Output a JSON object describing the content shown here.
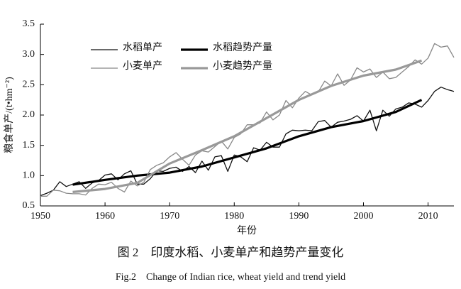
{
  "chart_data": {
    "type": "line",
    "title": "图 2　印度水稻、小麦单产和趋势产量变化",
    "subtitle": "Fig.2　Change of Indian rice, wheat yield and trend yield",
    "x_label": "年份",
    "y_label": "粮食单产/(t•hm⁻²)",
    "xlim": [
      1950,
      2014
    ],
    "ylim": [
      0.5,
      3.5
    ],
    "xticks": [
      1950,
      1960,
      1970,
      1980,
      1990,
      2000,
      2010
    ],
    "yticks": [
      {
        "value": 0.5,
        "label": "0.5"
      },
      {
        "value": 1,
        "label": "1.0"
      },
      {
        "value": 1.5,
        "label": "1.5"
      },
      {
        "value": 2,
        "label": "2.0"
      },
      {
        "value": 2.5,
        "label": "2.5"
      },
      {
        "value": 3,
        "label": "3.0"
      },
      {
        "value": 3.5,
        "label": "3.5"
      }
    ],
    "series": [
      {
        "name": "水稻单产",
        "color": "#111111",
        "width": 1.3,
        "x": [
          1950,
          1951,
          1952,
          1953,
          1954,
          1955,
          1956,
          1957,
          1958,
          1959,
          1960,
          1961,
          1962,
          1963,
          1964,
          1965,
          1966,
          1967,
          1968,
          1969,
          1970,
          1971,
          1972,
          1973,
          1974,
          1975,
          1976,
          1977,
          1978,
          1979,
          1980,
          1981,
          1982,
          1983,
          1984,
          1985,
          1986,
          1987,
          1988,
          1989,
          1990,
          1991,
          1992,
          1993,
          1994,
          1995,
          1996,
          1997,
          1998,
          1999,
          2000,
          2001,
          2002,
          2003,
          2004,
          2005,
          2006,
          2007,
          2008,
          2009,
          2010,
          2011,
          2012,
          2013,
          2014
        ],
        "values": [
          0.67,
          0.71,
          0.76,
          0.9,
          0.82,
          0.86,
          0.9,
          0.79,
          0.88,
          0.92,
          1.01,
          1.03,
          0.93,
          1.03,
          1.08,
          0.86,
          0.86,
          0.95,
          1.08,
          1.07,
          1.12,
          1.14,
          1.07,
          1.15,
          1.05,
          1.24,
          1.09,
          1.31,
          1.33,
          1.07,
          1.34,
          1.31,
          1.23,
          1.46,
          1.42,
          1.55,
          1.47,
          1.47,
          1.69,
          1.75,
          1.74,
          1.75,
          1.74,
          1.89,
          1.91,
          1.8,
          1.88,
          1.9,
          1.93,
          1.99,
          1.9,
          2.08,
          1.74,
          2.08,
          1.98,
          2.1,
          2.13,
          2.2,
          2.18,
          2.13,
          2.24,
          2.39,
          2.46,
          2.42,
          2.39
        ]
      },
      {
        "name": "水稻趋势产量",
        "color": "#000000",
        "width": 3.2,
        "x": [
          1955,
          1960,
          1965,
          1970,
          1975,
          1980,
          1985,
          1990,
          1995,
          2000,
          2005,
          2009
        ],
        "values": [
          0.85,
          0.93,
          1.0,
          1.05,
          1.15,
          1.3,
          1.45,
          1.65,
          1.8,
          1.9,
          2.05,
          2.25
        ]
      },
      {
        "name": "小麦单产",
        "color": "#888888",
        "width": 1.3,
        "x": [
          1950,
          1951,
          1952,
          1953,
          1954,
          1955,
          1956,
          1957,
          1958,
          1959,
          1960,
          1961,
          1962,
          1963,
          1964,
          1965,
          1966,
          1967,
          1968,
          1969,
          1970,
          1971,
          1972,
          1973,
          1974,
          1975,
          1976,
          1977,
          1978,
          1979,
          1980,
          1981,
          1982,
          1983,
          1984,
          1985,
          1986,
          1987,
          1988,
          1989,
          1990,
          1991,
          1992,
          1993,
          1994,
          1995,
          1996,
          1997,
          1998,
          1999,
          2000,
          2001,
          2002,
          2003,
          2004,
          2005,
          2006,
          2007,
          2008,
          2009,
          2010,
          2011,
          2012,
          2013,
          2014
        ],
        "values": [
          0.66,
          0.66,
          0.76,
          0.75,
          0.71,
          0.7,
          0.7,
          0.68,
          0.79,
          0.86,
          0.85,
          0.89,
          0.79,
          0.73,
          0.91,
          0.83,
          0.89,
          1.1,
          1.17,
          1.21,
          1.31,
          1.38,
          1.27,
          1.17,
          1.34,
          1.41,
          1.39,
          1.48,
          1.57,
          1.44,
          1.63,
          1.69,
          1.84,
          1.84,
          1.87,
          2.05,
          1.92,
          2.0,
          2.24,
          2.12,
          2.28,
          2.39,
          2.33,
          2.38,
          2.56,
          2.48,
          2.68,
          2.49,
          2.58,
          2.78,
          2.71,
          2.76,
          2.62,
          2.71,
          2.6,
          2.62,
          2.71,
          2.8,
          2.91,
          2.84,
          2.94,
          3.18,
          3.12,
          3.14,
          2.95
        ]
      },
      {
        "name": "小麦趋势产量",
        "color": "#999999",
        "width": 3.2,
        "x": [
          1955,
          1960,
          1965,
          1970,
          1975,
          1980,
          1985,
          1990,
          1995,
          2000,
          2005,
          2009
        ],
        "values": [
          0.73,
          0.78,
          0.88,
          1.2,
          1.42,
          1.65,
          1.95,
          2.25,
          2.48,
          2.65,
          2.75,
          2.9
        ]
      }
    ]
  }
}
